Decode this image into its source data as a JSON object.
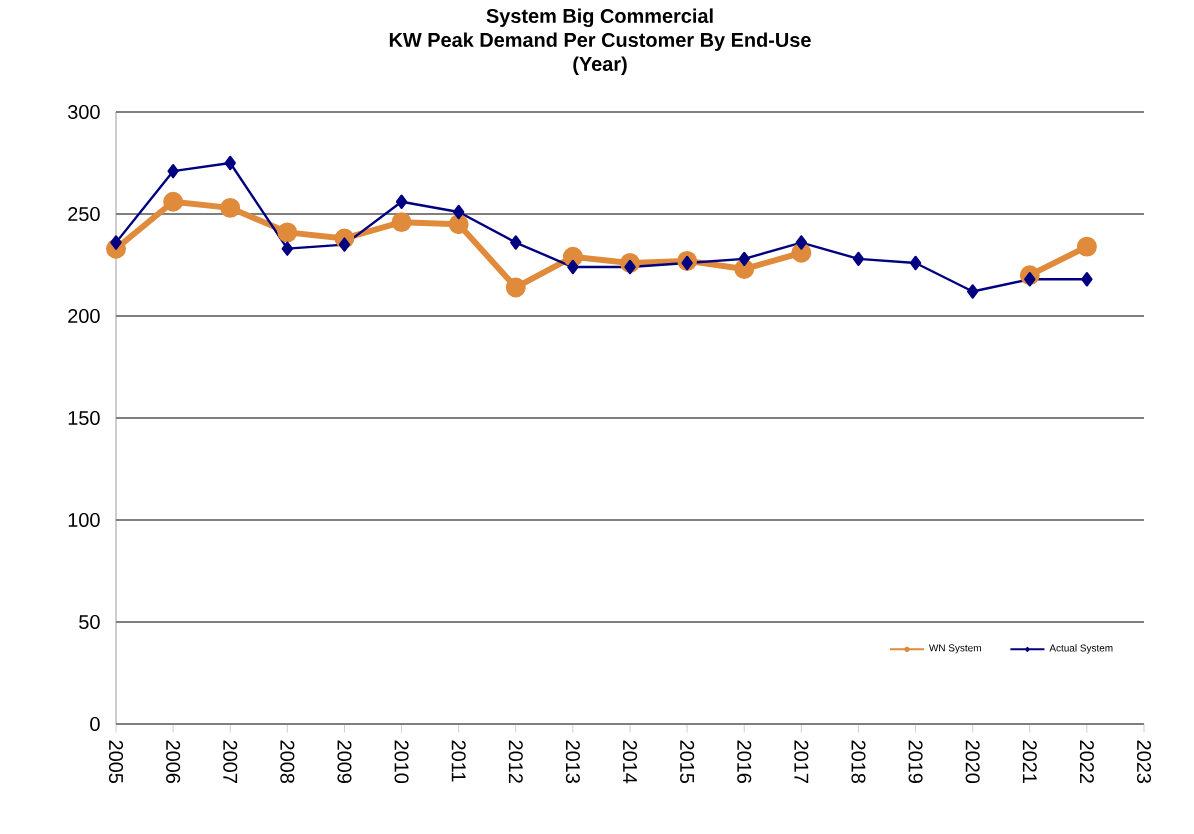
{
  "chart_data": {
    "type": "line",
    "title": "System Big Commercial",
    "subtitle": "KW Peak Demand Per Customer By End-Use",
    "annotations": [
      "(Year)"
    ],
    "x": [
      2005,
      2006,
      2007,
      2008,
      2009,
      2010,
      2011,
      2012,
      2013,
      2014,
      2015,
      2016,
      2017,
      2018,
      2019,
      2020,
      2021,
      2022
    ],
    "series": [
      {
        "name": "WN System",
        "color": "#e08a3c",
        "marker": "circle",
        "values": [
          233,
          256,
          253,
          241,
          238,
          246,
          245,
          214,
          229,
          226,
          227,
          223,
          231,
          null,
          null,
          null,
          220,
          234
        ]
      },
      {
        "name": "Actual System",
        "color": "#000080",
        "marker": "diamond",
        "values": [
          236,
          271,
          275,
          233,
          235,
          256,
          251,
          236,
          224,
          224,
          226,
          228,
          236,
          228,
          226,
          212,
          218,
          218
        ]
      }
    ],
    "xlim": [
      2005,
      2023
    ],
    "xticks": [
      2005,
      2006,
      2007,
      2008,
      2009,
      2010,
      2011,
      2012,
      2013,
      2014,
      2015,
      2016,
      2017,
      2018,
      2019,
      2020,
      2021,
      2022,
      2023
    ],
    "ylim": [
      0,
      300
    ],
    "yticks": [
      0,
      50,
      100,
      150,
      200,
      250,
      300
    ],
    "grid": "y",
    "legend": "bottom right"
  }
}
